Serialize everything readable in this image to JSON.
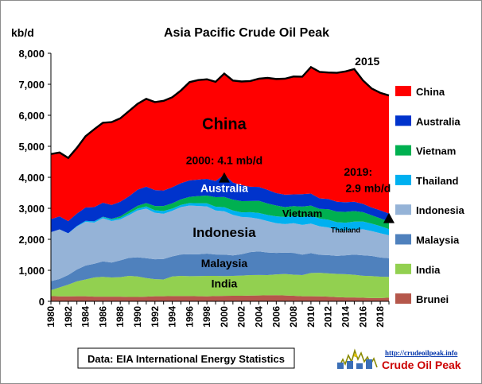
{
  "chart_data": {
    "type": "area",
    "stacked": true,
    "title": "Asia Pacific Crude Oil Peak",
    "ylabel": "kb/d",
    "xlabel": "",
    "ylim": [
      0,
      8000
    ],
    "yticks": [
      "0",
      "1,000",
      "2,000",
      "3,000",
      "4,000",
      "5,000",
      "6,000",
      "7,000",
      "8,000"
    ],
    "grid": false,
    "legend_position": "right",
    "x": [
      1980,
      1981,
      1982,
      1983,
      1984,
      1985,
      1986,
      1987,
      1988,
      1989,
      1990,
      1991,
      1992,
      1993,
      1994,
      1995,
      1996,
      1997,
      1998,
      1999,
      2000,
      2001,
      2002,
      2003,
      2004,
      2005,
      2006,
      2007,
      2008,
      2009,
      2010,
      2011,
      2012,
      2013,
      2014,
      2015,
      2016,
      2017,
      2018,
      2019
    ],
    "xtick_labels": [
      "1980",
      "1982",
      "1984",
      "1986",
      "1988",
      "1990",
      "1992",
      "1994",
      "1996",
      "1998",
      "2000",
      "2002",
      "2004",
      "2006",
      "2008",
      "2010",
      "2012",
      "2014",
      "2016",
      "2018"
    ],
    "series": [
      {
        "name": "Brunei",
        "color": "#b5574b",
        "values": [
          170,
          160,
          160,
          165,
          165,
          150,
          150,
          150,
          150,
          140,
          140,
          150,
          165,
          165,
          170,
          170,
          170,
          165,
          160,
          170,
          175,
          180,
          180,
          185,
          190,
          195,
          200,
          190,
          180,
          165,
          165,
          160,
          150,
          135,
          125,
          125,
          115,
          105,
          105,
          120
        ]
      },
      {
        "name": "India",
        "color": "#92d050",
        "values": [
          190,
          290,
          380,
          480,
          540,
          620,
          640,
          620,
          630,
          680,
          660,
          600,
          550,
          540,
          630,
          650,
          640,
          650,
          660,
          650,
          640,
          640,
          650,
          660,
          660,
          650,
          670,
          690,
          680,
          680,
          750,
          760,
          750,
          750,
          750,
          730,
          710,
          710,
          690,
          670
        ]
      },
      {
        "name": "Malaysia",
        "color": "#4f81bd",
        "values": [
          290,
          270,
          310,
          380,
          450,
          440,
          500,
          480,
          540,
          580,
          620,
          640,
          640,
          660,
          650,
          690,
          710,
          700,
          720,
          690,
          690,
          660,
          690,
          740,
          760,
          730,
          690,
          690,
          700,
          660,
          640,
          580,
          590,
          580,
          610,
          650,
          660,
          650,
          620,
          600
        ]
      },
      {
        "name": "Indonesia",
        "color": "#95b3d7",
        "values": [
          1580,
          1600,
          1340,
          1390,
          1410,
          1330,
          1390,
          1340,
          1320,
          1380,
          1510,
          1600,
          1500,
          1460,
          1470,
          1530,
          1570,
          1560,
          1520,
          1420,
          1400,
          1310,
          1200,
          1120,
          1050,
          1010,
          960,
          920,
          960,
          960,
          950,
          920,
          890,
          830,
          800,
          810,
          840,
          800,
          780,
          740
        ]
      },
      {
        "name": "Thailand",
        "color": "#00b0f0",
        "values": [
          0,
          0,
          5,
          15,
          30,
          40,
          40,
          50,
          50,
          55,
          60,
          70,
          80,
          90,
          70,
          70,
          80,
          90,
          100,
          120,
          130,
          140,
          150,
          170,
          190,
          200,
          220,
          230,
          240,
          250,
          260,
          250,
          250,
          255,
          250,
          255,
          250,
          240,
          230,
          200
        ]
      },
      {
        "name": "Vietnam",
        "color": "#00b050",
        "values": [
          0,
          0,
          0,
          0,
          0,
          0,
          10,
          20,
          50,
          80,
          90,
          110,
          140,
          160,
          170,
          180,
          200,
          230,
          250,
          310,
          330,
          350,
          360,
          360,
          390,
          370,
          350,
          320,
          310,
          340,
          320,
          310,
          340,
          340,
          350,
          340,
          300,
          270,
          250,
          240
        ]
      },
      {
        "name": "Australia",
        "color": "#0033cc",
        "values": [
          420,
          420,
          390,
          400,
          430,
          460,
          450,
          450,
          470,
          470,
          520,
          530,
          510,
          500,
          520,
          520,
          530,
          530,
          540,
          520,
          720,
          550,
          520,
          460,
          450,
          440,
          400,
          400,
          380,
          400,
          390,
          340,
          330,
          320,
          310,
          300,
          270,
          250,
          260,
          260
        ]
      },
      {
        "name": "China",
        "color": "#ff0000",
        "values": [
          2100,
          2060,
          2040,
          2120,
          2300,
          2510,
          2580,
          2670,
          2690,
          2750,
          2770,
          2830,
          2840,
          2890,
          2900,
          2990,
          3170,
          3210,
          3210,
          3200,
          3260,
          3290,
          3340,
          3410,
          3490,
          3610,
          3680,
          3740,
          3800,
          3790,
          4080,
          4080,
          4080,
          4160,
          4220,
          4280,
          3980,
          3840,
          3790,
          3810
        ]
      }
    ],
    "annotations": [
      {
        "text": "2015"
      },
      {
        "text": "2000: 4.1 mb/d"
      },
      {
        "text": "2019:"
      },
      {
        "text": "2.9 mb/d"
      }
    ],
    "area_labels": {
      "China": "China",
      "Australia": "Australia",
      "Vietnam": "Vietnam",
      "Thailand": "Thailand",
      "Indonesia": "Indonesia",
      "Malaysia": "Malaysia",
      "India": "India"
    },
    "source_note": "Data: EIA International Energy Statistics",
    "logo_url": "http://crudeoilpeak.info",
    "logo_text": "Crude Oil Peak"
  }
}
